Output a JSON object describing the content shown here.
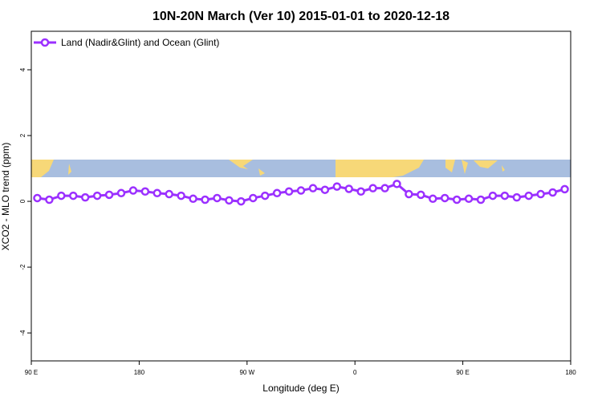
{
  "chart_data": {
    "type": "line",
    "title": "10N-20N March (Ver 10)   2015-01-01 to 2020-12-18",
    "x_label": "Longitude (deg E)",
    "y_label": "XCO2 - MLO trend (ppm)",
    "x": [
      95,
      105,
      115,
      125,
      135,
      145,
      155,
      165,
      175,
      185,
      195,
      205,
      215,
      225,
      235,
      245,
      255,
      265,
      275,
      285,
      295,
      305,
      315,
      325,
      335,
      345,
      355,
      365,
      375,
      385,
      395,
      405,
      415,
      425,
      435,
      445,
      455,
      465,
      475,
      485,
      495,
      505,
      515,
      525,
      535
    ],
    "series": [
      {
        "name": "Land (Nadir&Glint) and Ocean (Glint)",
        "color": "#9b30ff",
        "values": [
          0.1,
          0.05,
          0.17,
          0.17,
          0.12,
          0.17,
          0.2,
          0.25,
          0.33,
          0.3,
          0.25,
          0.22,
          0.17,
          0.08,
          0.05,
          0.1,
          0.03,
          0.0,
          0.1,
          0.17,
          0.25,
          0.3,
          0.33,
          0.4,
          0.35,
          0.45,
          0.38,
          0.3,
          0.4,
          0.4,
          0.53,
          0.22,
          0.2,
          0.08,
          0.1,
          0.05,
          0.08,
          0.05,
          0.17,
          0.17,
          0.12,
          0.17,
          0.22,
          0.27,
          0.37
        ]
      }
    ],
    "xlim": [
      90,
      540
    ],
    "xticks": [
      {
        "value": 90,
        "label": "90 E"
      },
      {
        "value": 180,
        "label": "180"
      },
      {
        "value": 270,
        "label": "90 W"
      },
      {
        "value": 360,
        "label": "0"
      },
      {
        "value": 450,
        "label": "90 E"
      },
      {
        "value": 540,
        "label": "180"
      }
    ],
    "ylim": [
      -4.85,
      5.17
    ],
    "yticks": [
      -4,
      -2,
      0,
      2,
      4
    ],
    "legend": "top-left"
  }
}
